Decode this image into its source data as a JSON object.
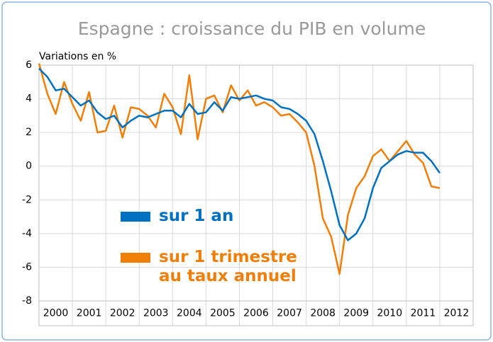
{
  "chart_data": {
    "type": "line",
    "title": "Espagne : croissance du PIB en volume",
    "y_label": "Variations en %",
    "x": [
      2000,
      2000.25,
      2000.5,
      2000.75,
      2001,
      2001.25,
      2001.5,
      2001.75,
      2002,
      2002.25,
      2002.5,
      2002.75,
      2003,
      2003.25,
      2003.5,
      2003.75,
      2004,
      2004.25,
      2004.5,
      2004.75,
      2005,
      2005.25,
      2005.5,
      2005.75,
      2006,
      2006.25,
      2006.5,
      2006.75,
      2007,
      2007.25,
      2007.5,
      2007.75,
      2008,
      2008.25,
      2008.5,
      2008.75,
      2009,
      2009.25,
      2009.5,
      2009.75,
      2010,
      2010.25,
      2010.5,
      2010.75,
      2011,
      2011.25,
      2011.5,
      2011.75,
      2012
    ],
    "series": [
      {
        "name": "sur 1 an",
        "color": "#0070c0",
        "values": [
          5.8,
          5.3,
          4.5,
          4.6,
          4.1,
          3.6,
          3.9,
          3.2,
          2.8,
          3.0,
          2.3,
          2.7,
          3.0,
          2.9,
          3.1,
          3.3,
          3.3,
          2.9,
          3.7,
          3.1,
          3.2,
          3.8,
          3.3,
          4.1,
          4.0,
          4.1,
          4.2,
          4.0,
          3.9,
          3.5,
          3.4,
          3.1,
          2.7,
          1.9,
          0.3,
          -1.5,
          -3.5,
          -4.4,
          -4.0,
          -3.1,
          -1.3,
          -0.1,
          0.3,
          0.7,
          0.9,
          0.8,
          0.8,
          0.3,
          -0.4
        ]
      },
      {
        "name": "sur 1 trimestre au taux annuel",
        "color": "#f07f09",
        "values": [
          6.1,
          4.3,
          3.1,
          5.0,
          3.7,
          2.7,
          4.4,
          2.0,
          2.1,
          3.6,
          1.7,
          3.5,
          3.4,
          3.0,
          2.3,
          4.3,
          3.5,
          1.9,
          5.4,
          1.6,
          4.0,
          4.2,
          3.2,
          4.8,
          3.9,
          4.5,
          3.6,
          3.8,
          3.5,
          3.0,
          3.1,
          2.6,
          2.0,
          0.0,
          -3.1,
          -4.2,
          -6.4,
          -2.9,
          -1.3,
          -0.6,
          0.6,
          1.0,
          0.3,
          0.9,
          1.5,
          0.7,
          0.2,
          -1.2,
          -1.3
        ]
      }
    ],
    "xlim": [
      2000,
      2013
    ],
    "xticks": [
      {
        "value": 2000.5,
        "label": "2000"
      },
      {
        "value": 2001.5,
        "label": "2001"
      },
      {
        "value": 2002.5,
        "label": "2002"
      },
      {
        "value": 2003.5,
        "label": "2003"
      },
      {
        "value": 2004.5,
        "label": "2004"
      },
      {
        "value": 2005.5,
        "label": "2005"
      },
      {
        "value": 2006.5,
        "label": "2006"
      },
      {
        "value": 2007.5,
        "label": "2007"
      },
      {
        "value": 2008.5,
        "label": "2008"
      },
      {
        "value": 2009.5,
        "label": "2009"
      },
      {
        "value": 2010.5,
        "label": "2010"
      },
      {
        "value": 2011.5,
        "label": "2011"
      },
      {
        "value": 2012.5,
        "label": "2012"
      }
    ],
    "ylim": [
      -8,
      6
    ],
    "yticks": [
      -8,
      -6,
      -4,
      -2,
      0,
      2,
      4,
      6
    ],
    "grid": true
  }
}
